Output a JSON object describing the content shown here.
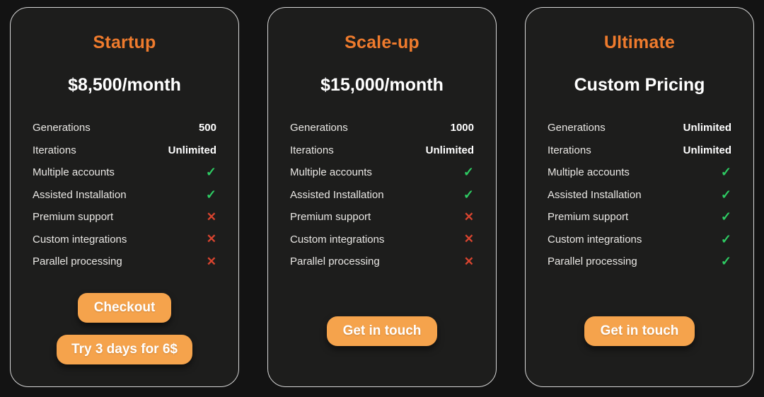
{
  "colors": {
    "page_bg": "#131313",
    "card_bg": "#1d1d1c",
    "card_border": "#d6d6d6",
    "accent_title_orange": "#ef7b2d",
    "button_orange": "#f5a34c",
    "check_green": "#2ecc63",
    "cross_red": "#d8442f",
    "text_primary": "#ffffff",
    "text_label": "#e9e7e4"
  },
  "cards": [
    {
      "title": "Startup",
      "price": "$8,500/month",
      "features": [
        {
          "label": "Generations",
          "value": "500",
          "kind": "text",
          "name": "feature-value"
        },
        {
          "label": "Iterations",
          "value": "Unlimited",
          "kind": "text",
          "name": "feature-value"
        },
        {
          "label": "Multiple accounts",
          "value": "✓",
          "kind": "check",
          "name": "check-icon"
        },
        {
          "label": "Assisted Installation",
          "value": "✓",
          "kind": "check",
          "name": "check-icon"
        },
        {
          "label": "Premium support",
          "value": "✕",
          "kind": "cross",
          "name": "cross-icon"
        },
        {
          "label": "Custom integrations",
          "value": "✕",
          "kind": "cross",
          "name": "cross-icon"
        },
        {
          "label": "Parallel processing",
          "value": "✕",
          "kind": "cross",
          "name": "cross-icon"
        }
      ],
      "buttons": [
        {
          "label": "Checkout"
        },
        {
          "label": "Try 3 days for 6$"
        }
      ]
    },
    {
      "title": "Scale-up",
      "price": "$15,000/month",
      "features": [
        {
          "label": "Generations",
          "value": "1000",
          "kind": "text",
          "name": "feature-value"
        },
        {
          "label": "Iterations",
          "value": "Unlimited",
          "kind": "text",
          "name": "feature-value"
        },
        {
          "label": "Multiple accounts",
          "value": "✓",
          "kind": "check",
          "name": "check-icon"
        },
        {
          "label": "Assisted Installation",
          "value": "✓",
          "kind": "check",
          "name": "check-icon"
        },
        {
          "label": "Premium support",
          "value": "✕",
          "kind": "cross",
          "name": "cross-icon"
        },
        {
          "label": "Custom integrations",
          "value": "✕",
          "kind": "cross",
          "name": "cross-icon"
        },
        {
          "label": "Parallel processing",
          "value": "✕",
          "kind": "cross",
          "name": "cross-icon"
        }
      ],
      "buttons": [
        {
          "label": "Get in touch"
        }
      ]
    },
    {
      "title": "Ultimate",
      "price": "Custom Pricing",
      "features": [
        {
          "label": "Generations",
          "value": "Unlimited",
          "kind": "text",
          "name": "feature-value"
        },
        {
          "label": "Iterations",
          "value": "Unlimited",
          "kind": "text",
          "name": "feature-value"
        },
        {
          "label": "Multiple accounts",
          "value": "✓",
          "kind": "check",
          "name": "check-icon"
        },
        {
          "label": "Assisted Installation",
          "value": "✓",
          "kind": "check",
          "name": "check-icon"
        },
        {
          "label": "Premium support",
          "value": "✓",
          "kind": "check",
          "name": "check-icon"
        },
        {
          "label": "Custom integrations",
          "value": "✓",
          "kind": "check",
          "name": "check-icon"
        },
        {
          "label": "Parallel processing",
          "value": "✓",
          "kind": "check",
          "name": "check-icon"
        }
      ],
      "buttons": [
        {
          "label": "Get in touch"
        }
      ]
    }
  ]
}
